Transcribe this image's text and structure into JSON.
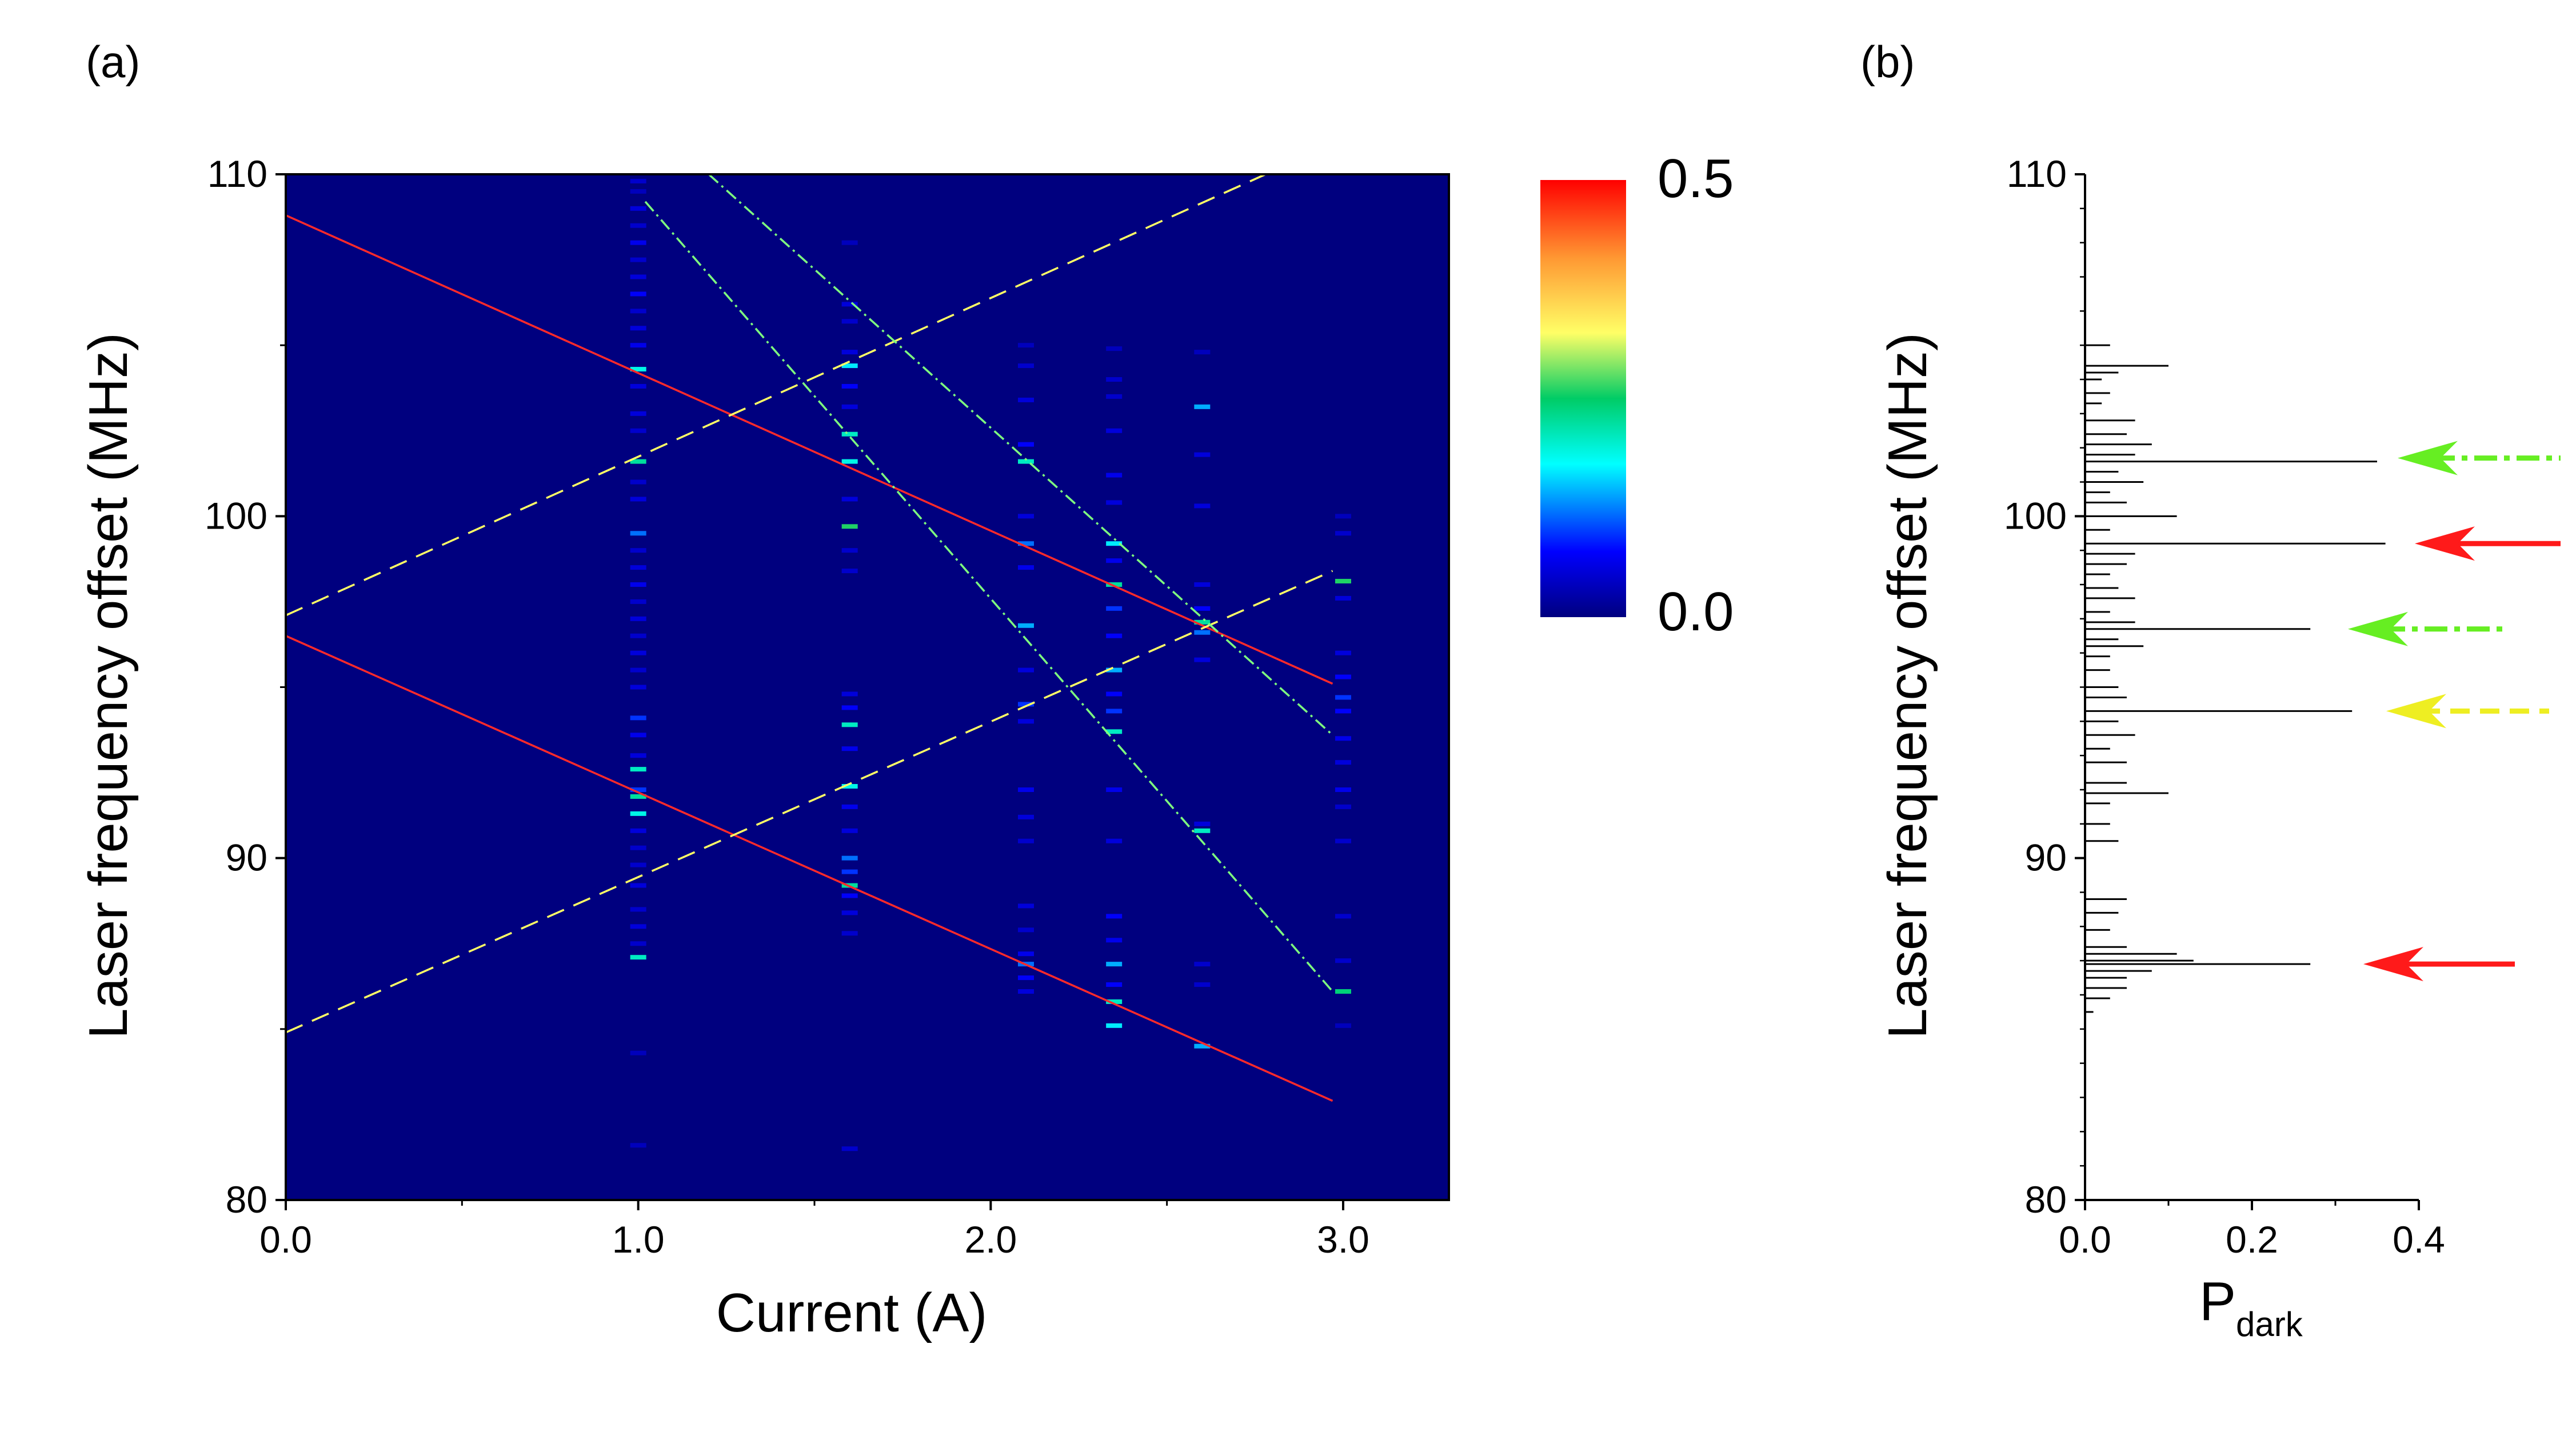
{
  "panel_labels": [
    "(a)",
    "(b)"
  ],
  "chart_data": [
    {
      "type": "heatmap",
      "title": "",
      "xlabel": "Current (A)",
      "ylabel": "Laser frequency offset (MHz)",
      "xlim": [
        0.0,
        3.3
      ],
      "ylim": [
        80,
        110
      ],
      "xticks": [
        0.0,
        1.0,
        2.0,
        3.0
      ],
      "xtick_labels": [
        "0.0",
        "1.0",
        "2.0",
        "3.0"
      ],
      "yticks": [
        80,
        90,
        100,
        110
      ],
      "ytick_labels": [
        "80",
        "90",
        "100",
        "110"
      ],
      "background_color": "#00007f",
      "colorbar": {
        "min": 0.0,
        "max": 0.5,
        "labels": [
          "0.5",
          "0.0"
        ],
        "colormap": [
          "#00007f",
          "#0000ff",
          "#00ffff",
          "#00cc66",
          "#ffff66",
          "#ff9933",
          "#ff0000"
        ]
      },
      "columns": [
        {
          "x": 1.0,
          "lines": [
            [
              109.8,
              0.05
            ],
            [
              109.5,
              0.04
            ],
            [
              109.0,
              0.06
            ],
            [
              108.5,
              0.05
            ],
            [
              108.0,
              0.07
            ],
            [
              107.5,
              0.05
            ],
            [
              107.0,
              0.06
            ],
            [
              106.5,
              0.08
            ],
            [
              106.0,
              0.05
            ],
            [
              105.5,
              0.06
            ],
            [
              105.0,
              0.07
            ],
            [
              104.3,
              0.18
            ],
            [
              103.8,
              0.06
            ],
            [
              103.0,
              0.06
            ],
            [
              102.5,
              0.05
            ],
            [
              101.6,
              0.22
            ],
            [
              101.0,
              0.05
            ],
            [
              100.5,
              0.06
            ],
            [
              99.5,
              0.12
            ],
            [
              99.0,
              0.05
            ],
            [
              98.5,
              0.06
            ],
            [
              98.0,
              0.07
            ],
            [
              97.5,
              0.05
            ],
            [
              97.0,
              0.06
            ],
            [
              96.5,
              0.05
            ],
            [
              96.0,
              0.06
            ],
            [
              95.5,
              0.05
            ],
            [
              95.0,
              0.06
            ],
            [
              94.1,
              0.1
            ],
            [
              93.6,
              0.07
            ],
            [
              93.0,
              0.06
            ],
            [
              92.6,
              0.2
            ],
            [
              92.0,
              0.1
            ],
            [
              91.8,
              0.22
            ],
            [
              91.3,
              0.18
            ],
            [
              90.8,
              0.06
            ],
            [
              90.3,
              0.05
            ],
            [
              89.8,
              0.05
            ],
            [
              89.2,
              0.06
            ],
            [
              88.5,
              0.05
            ],
            [
              88.0,
              0.06
            ],
            [
              87.5,
              0.05
            ],
            [
              87.1,
              0.2
            ],
            [
              84.3,
              0.04
            ],
            [
              81.6,
              0.04
            ]
          ]
        },
        {
          "x": 1.6,
          "lines": [
            [
              108.0,
              0.04
            ],
            [
              106.2,
              0.06
            ],
            [
              105.7,
              0.05
            ],
            [
              104.8,
              0.06
            ],
            [
              104.4,
              0.16
            ],
            [
              103.8,
              0.08
            ],
            [
              103.2,
              0.06
            ],
            [
              102.4,
              0.2
            ],
            [
              101.6,
              0.18
            ],
            [
              100.5,
              0.06
            ],
            [
              99.7,
              0.26
            ],
            [
              99.0,
              0.05
            ],
            [
              98.4,
              0.05
            ],
            [
              94.8,
              0.06
            ],
            [
              94.4,
              0.08
            ],
            [
              93.9,
              0.2
            ],
            [
              93.2,
              0.07
            ],
            [
              92.1,
              0.18
            ],
            [
              91.5,
              0.07
            ],
            [
              90.8,
              0.06
            ],
            [
              90.0,
              0.12
            ],
            [
              89.6,
              0.1
            ],
            [
              89.2,
              0.22
            ],
            [
              88.9,
              0.08
            ],
            [
              88.4,
              0.06
            ],
            [
              87.8,
              0.05
            ],
            [
              81.5,
              0.05
            ]
          ]
        },
        {
          "x": 2.1,
          "lines": [
            [
              105.0,
              0.04
            ],
            [
              104.4,
              0.05
            ],
            [
              103.4,
              0.06
            ],
            [
              102.1,
              0.08
            ],
            [
              101.6,
              0.2
            ],
            [
              100.0,
              0.06
            ],
            [
              99.2,
              0.12
            ],
            [
              98.5,
              0.07
            ],
            [
              96.8,
              0.14
            ],
            [
              95.5,
              0.06
            ],
            [
              94.5,
              0.1
            ],
            [
              94.0,
              0.06
            ],
            [
              92.0,
              0.07
            ],
            [
              91.2,
              0.06
            ],
            [
              90.5,
              0.05
            ],
            [
              88.6,
              0.06
            ],
            [
              87.9,
              0.05
            ],
            [
              87.2,
              0.07
            ],
            [
              86.9,
              0.12
            ],
            [
              86.5,
              0.08
            ],
            [
              86.1,
              0.06
            ]
          ]
        },
        {
          "x": 2.35,
          "lines": [
            [
              104.9,
              0.04
            ],
            [
              104.0,
              0.05
            ],
            [
              103.5,
              0.05
            ],
            [
              102.5,
              0.06
            ],
            [
              101.2,
              0.07
            ],
            [
              100.4,
              0.06
            ],
            [
              99.2,
              0.16
            ],
            [
              98.7,
              0.07
            ],
            [
              98.0,
              0.22
            ],
            [
              97.3,
              0.1
            ],
            [
              96.5,
              0.08
            ],
            [
              95.5,
              0.14
            ],
            [
              94.8,
              0.08
            ],
            [
              94.3,
              0.1
            ],
            [
              93.7,
              0.2
            ],
            [
              92.0,
              0.07
            ],
            [
              90.5,
              0.06
            ],
            [
              88.3,
              0.08
            ],
            [
              87.6,
              0.07
            ],
            [
              86.9,
              0.14
            ],
            [
              86.3,
              0.08
            ],
            [
              85.8,
              0.2
            ],
            [
              85.1,
              0.16
            ]
          ]
        },
        {
          "x": 2.6,
          "lines": [
            [
              104.8,
              0.04
            ],
            [
              103.2,
              0.14
            ],
            [
              101.8,
              0.06
            ],
            [
              100.3,
              0.06
            ],
            [
              98.0,
              0.06
            ],
            [
              97.3,
              0.08
            ],
            [
              96.9,
              0.22
            ],
            [
              96.6,
              0.12
            ],
            [
              95.8,
              0.06
            ],
            [
              91.0,
              0.06
            ],
            [
              90.8,
              0.2
            ],
            [
              86.9,
              0.05
            ],
            [
              86.3,
              0.05
            ],
            [
              84.5,
              0.14
            ]
          ]
        },
        {
          "x": 3.0,
          "lines": [
            [
              100.0,
              0.04
            ],
            [
              99.5,
              0.05
            ],
            [
              98.1,
              0.26
            ],
            [
              97.6,
              0.06
            ],
            [
              96.0,
              0.06
            ],
            [
              95.3,
              0.08
            ],
            [
              94.7,
              0.1
            ],
            [
              94.3,
              0.08
            ],
            [
              93.5,
              0.07
            ],
            [
              92.8,
              0.06
            ],
            [
              92.0,
              0.07
            ],
            [
              91.5,
              0.05
            ],
            [
              90.5,
              0.05
            ],
            [
              88.3,
              0.05
            ],
            [
              87.0,
              0.05
            ],
            [
              86.1,
              0.24
            ],
            [
              85.1,
              0.04
            ]
          ]
        }
      ],
      "overlay_lines": [
        {
          "style": "solid",
          "color": "#ff2a2a",
          "x": [
            0.0,
            2.97
          ],
          "y": [
            108.8,
            95.1
          ]
        },
        {
          "style": "solid",
          "color": "#ff2a2a",
          "x": [
            0.0,
            2.97
          ],
          "y": [
            96.5,
            82.9
          ]
        },
        {
          "style": "dash",
          "color": "#ffff66",
          "x": [
            0.0,
            2.78
          ],
          "y": [
            97.1,
            110.0
          ]
        },
        {
          "style": "dash",
          "color": "#ffff66",
          "x": [
            0.0,
            2.97
          ],
          "y": [
            84.9,
            98.4
          ]
        },
        {
          "style": "dashdot",
          "color": "#7fff7f",
          "x": [
            1.02,
            2.97
          ],
          "y": [
            109.2,
            86.1
          ]
        },
        {
          "style": "dashdot",
          "color": "#7fff7f",
          "x": [
            1.2,
            2.97
          ],
          "y": [
            110.0,
            93.6
          ]
        }
      ]
    },
    {
      "type": "bar",
      "orientation": "horizontal",
      "title": "",
      "xlabel_main": "P",
      "xlabel_sub": "dark",
      "ylabel": "Laser frequency offset (MHz)",
      "xlim": [
        0.0,
        0.4
      ],
      "ylim": [
        80,
        110
      ],
      "xticks": [
        0.0,
        0.2,
        0.4
      ],
      "xtick_labels": [
        "0.0",
        "0.2",
        "0.4"
      ],
      "yticks": [
        80,
        90,
        100,
        110
      ],
      "ytick_labels": [
        "80",
        "90",
        "100",
        "110"
      ],
      "bars": [
        [
          105.0,
          0.03
        ],
        [
          104.4,
          0.1
        ],
        [
          104.2,
          0.04
        ],
        [
          104.0,
          0.02
        ],
        [
          103.6,
          0.03
        ],
        [
          103.3,
          0.02
        ],
        [
          102.8,
          0.06
        ],
        [
          102.4,
          0.05
        ],
        [
          102.1,
          0.08
        ],
        [
          101.8,
          0.06
        ],
        [
          101.6,
          0.35
        ],
        [
          101.3,
          0.04
        ],
        [
          101.0,
          0.07
        ],
        [
          100.7,
          0.03
        ],
        [
          100.4,
          0.05
        ],
        [
          100.0,
          0.11
        ],
        [
          99.6,
          0.03
        ],
        [
          99.2,
          0.36
        ],
        [
          98.9,
          0.06
        ],
        [
          98.6,
          0.05
        ],
        [
          98.3,
          0.03
        ],
        [
          97.9,
          0.04
        ],
        [
          97.6,
          0.06
        ],
        [
          97.2,
          0.03
        ],
        [
          96.9,
          0.06
        ],
        [
          96.7,
          0.27
        ],
        [
          96.4,
          0.04
        ],
        [
          96.2,
          0.07
        ],
        [
          95.9,
          0.03
        ],
        [
          95.5,
          0.03
        ],
        [
          95.0,
          0.04
        ],
        [
          94.7,
          0.05
        ],
        [
          94.3,
          0.32
        ],
        [
          94.0,
          0.04
        ],
        [
          93.6,
          0.06
        ],
        [
          93.2,
          0.03
        ],
        [
          92.8,
          0.05
        ],
        [
          92.2,
          0.05
        ],
        [
          91.9,
          0.1
        ],
        [
          91.6,
          0.03
        ],
        [
          91.0,
          0.03
        ],
        [
          90.5,
          0.04
        ],
        [
          88.8,
          0.05
        ],
        [
          88.4,
          0.04
        ],
        [
          87.9,
          0.03
        ],
        [
          87.4,
          0.05
        ],
        [
          87.2,
          0.11
        ],
        [
          87.0,
          0.13
        ],
        [
          86.9,
          0.27
        ],
        [
          86.7,
          0.08
        ],
        [
          86.5,
          0.05
        ],
        [
          86.2,
          0.05
        ],
        [
          85.9,
          0.03
        ],
        [
          85.5,
          0.01
        ]
      ],
      "markers": [
        {
          "y": 101.7,
          "color": "#66ee22",
          "style": "dashdot"
        },
        {
          "y": 99.2,
          "color": "#ff1a1a",
          "style": "solid"
        },
        {
          "y": 96.7,
          "color": "#66ee22",
          "style": "dashdot"
        },
        {
          "y": 94.3,
          "color": "#eeee22",
          "style": "dash"
        },
        {
          "y": 86.9,
          "color": "#ff1a1a",
          "style": "solid"
        }
      ]
    }
  ]
}
